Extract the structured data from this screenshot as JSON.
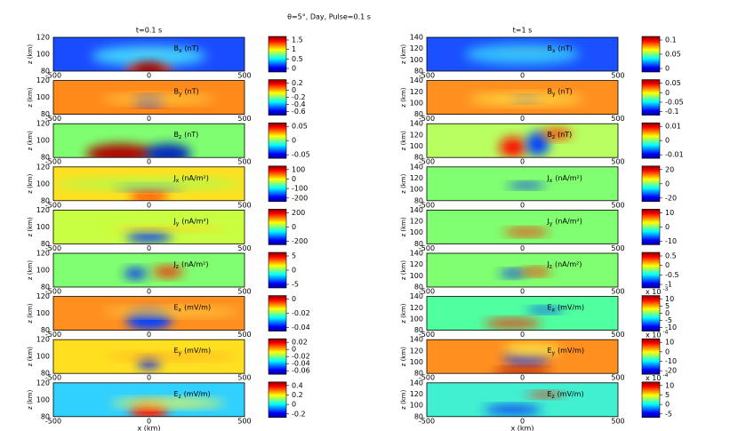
{
  "title": "θ=5°, Day, Pulse=0.1 s",
  "ylabel": "z (km)",
  "xlabel": "x (km)",
  "columns": [
    {
      "title": "t=0.1 s",
      "yticks": [
        "120",
        "100",
        "80"
      ],
      "xticks": [
        "-500",
        "0",
        "500"
      ],
      "panels": [
        {
          "symbol": "B",
          "sub": "x",
          "unit": "(nT)",
          "colorbar": [
            "1.5",
            "1",
            "0.5",
            "0"
          ]
        },
        {
          "symbol": "B",
          "sub": "y",
          "unit": "(nT)",
          "colorbar": [
            "0.2",
            "0",
            "-0.2",
            "-0.4",
            "-0.6"
          ]
        },
        {
          "symbol": "B",
          "sub": "z",
          "unit": "(nT)",
          "colorbar": [
            "0.05",
            "0",
            "-0.05"
          ]
        },
        {
          "symbol": "J",
          "sub": "x",
          "unit": "(nA/m²)",
          "colorbar": [
            "100",
            "0",
            "-100",
            "-200"
          ]
        },
        {
          "symbol": "J",
          "sub": "y",
          "unit": "(nA/m²)",
          "colorbar": [
            "200",
            "0",
            "-200"
          ]
        },
        {
          "symbol": "J",
          "sub": "z",
          "unit": "(nA/m²)",
          "colorbar": [
            "5",
            "0",
            "-5"
          ]
        },
        {
          "symbol": "E",
          "sub": "x",
          "unit": "(mV/m)",
          "colorbar": [
            "0",
            "-0.02",
            "-0.04"
          ]
        },
        {
          "symbol": "E",
          "sub": "y",
          "unit": "(mV/m)",
          "colorbar": [
            "0.02",
            "0",
            "-0.02",
            "-0.04",
            "-0.06"
          ]
        },
        {
          "symbol": "E",
          "sub": "z",
          "unit": "(mV/m)",
          "colorbar": [
            "0.4",
            "0.2",
            "0",
            "-0.2"
          ]
        }
      ]
    },
    {
      "title": "t=1 s",
      "yticks": [
        "140",
        "120",
        "100",
        "80"
      ],
      "xticks": [
        "-500",
        "0",
        "500"
      ],
      "panels": [
        {
          "symbol": "B",
          "sub": "x",
          "unit": "(nT)",
          "colorbar": [
            "0.1",
            "0.05",
            "0"
          ]
        },
        {
          "symbol": "B",
          "sub": "y",
          "unit": "(nT)",
          "colorbar": [
            "0.05",
            "0",
            "-0.05",
            "-0.1"
          ]
        },
        {
          "symbol": "B",
          "sub": "z",
          "unit": "(nT)",
          "colorbar": [
            "0.01",
            "0",
            "-0.01"
          ]
        },
        {
          "symbol": "J",
          "sub": "x",
          "unit": "(nA/m²)",
          "colorbar": [
            "20",
            "0",
            "-20"
          ]
        },
        {
          "symbol": "J",
          "sub": "y",
          "unit": "(nA/m²)",
          "colorbar": [
            "10",
            "0",
            "-10"
          ]
        },
        {
          "symbol": "J",
          "sub": "z",
          "unit": "(nA/m²)",
          "colorbar": [
            "0.5",
            "0",
            "-0.5",
            "-1"
          ],
          "multiplier": "x 10",
          "exponent": "-3"
        },
        {
          "symbol": "E",
          "sub": "x",
          "unit": "(mV/m)",
          "colorbar": [
            "10",
            "5",
            "0",
            "-5",
            "-10"
          ],
          "multiplier": "x 10",
          "exponent": "-4"
        },
        {
          "symbol": "E",
          "sub": "y",
          "unit": "(mV/m)",
          "colorbar": [
            "10",
            "0",
            "-10",
            "-20"
          ],
          "multiplier": "x 10",
          "exponent": "-4"
        },
        {
          "symbol": "E",
          "sub": "z",
          "unit": "(mV/m)",
          "colorbar": [
            "10",
            "5",
            "0",
            "-5"
          ]
        }
      ]
    }
  ]
}
